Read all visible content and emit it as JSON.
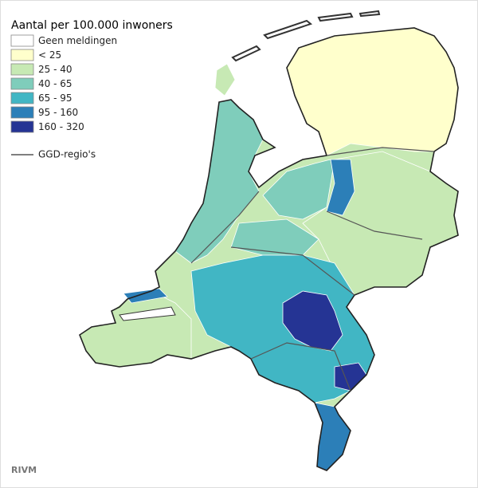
{
  "title": "Aantal per 100.000 inwoners",
  "legend": {
    "items": [
      {
        "label": "Geen meldingen",
        "color": "#ffffff"
      },
      {
        "label": "< 25",
        "color": "#ffffcc"
      },
      {
        "label": "25 - 40",
        "color": "#c7e9b4"
      },
      {
        "label": "40 - 65",
        "color": "#7fcdbb"
      },
      {
        "label": "65 - 95",
        "color": "#41b6c4"
      },
      {
        "label": "95 - 160",
        "color": "#2c7fb8"
      },
      {
        "label": "160 - 320",
        "color": "#253494"
      }
    ],
    "boundary": "GGD-regio's"
  },
  "source": "RIVM"
}
